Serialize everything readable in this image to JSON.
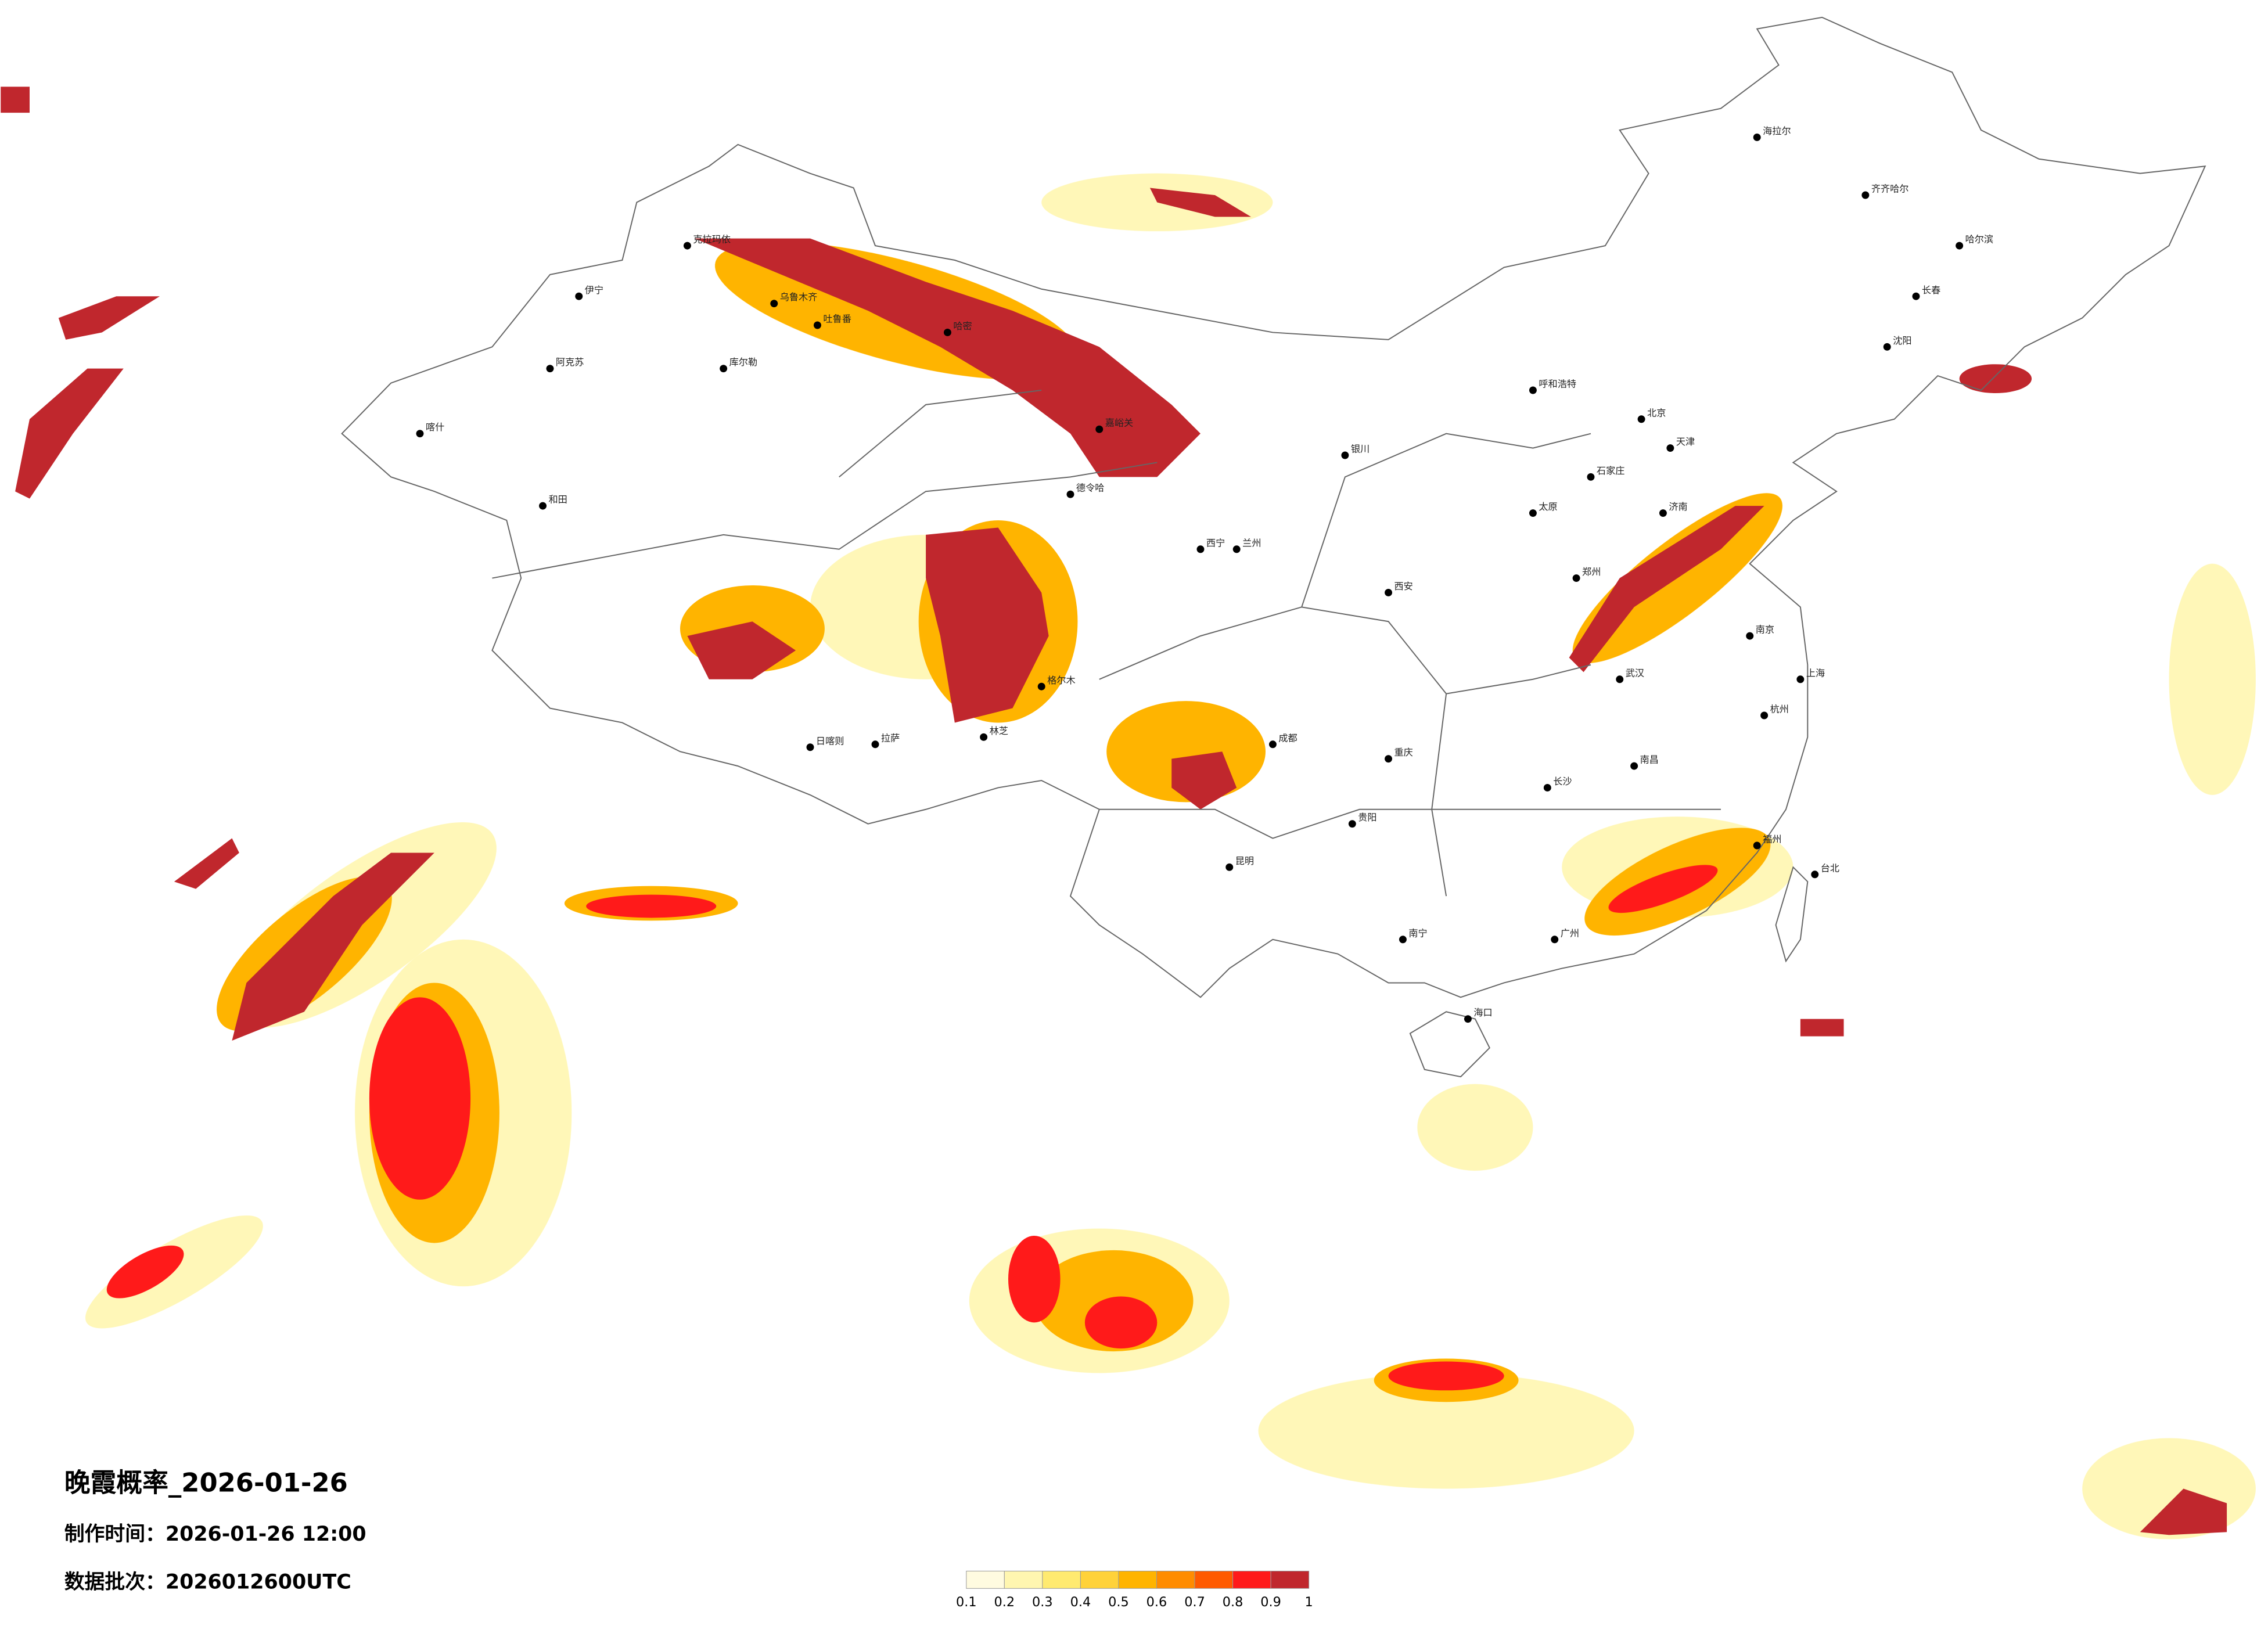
{
  "header": {
    "title": "晚霞概率_2026-01-26",
    "made_time": "制作时间：2026-01-26 12:00",
    "batch": "数据批次：2026012600UTC"
  },
  "colorbar": {
    "ticks": [
      0.1,
      0.2,
      0.3,
      0.4,
      0.5,
      0.6,
      0.7,
      0.8,
      0.9,
      1
    ],
    "colors": [
      "#fffbe0",
      "#fff6b0",
      "#ffea70",
      "#ffd23a",
      "#ffb400",
      "#ff8c00",
      "#ff5a00",
      "#ff1a1a",
      "#c0272d"
    ]
  },
  "map": {
    "cities": [
      "海拉尔",
      "齐齐哈尔",
      "哈尔滨",
      "长春",
      "沈阳",
      "北京",
      "天津",
      "石家庄",
      "太原",
      "呼和浩特",
      "济南",
      "郑州",
      "西安",
      "银川",
      "兰州",
      "西宁",
      "成都",
      "重庆",
      "武汉",
      "南京",
      "上海",
      "杭州",
      "长沙",
      "南昌",
      "福州",
      "台北",
      "广州",
      "南宁",
      "贵阳",
      "昆明",
      "海口",
      "拉萨",
      "日喀则",
      "林芝",
      "格尔木",
      "德令哈",
      "嘉峪关",
      "哈密",
      "吐鲁番",
      "乌鲁木齐",
      "克拉玛依",
      "伊宁",
      "库尔勒",
      "阿克苏",
      "喀什",
      "和田"
    ]
  }
}
